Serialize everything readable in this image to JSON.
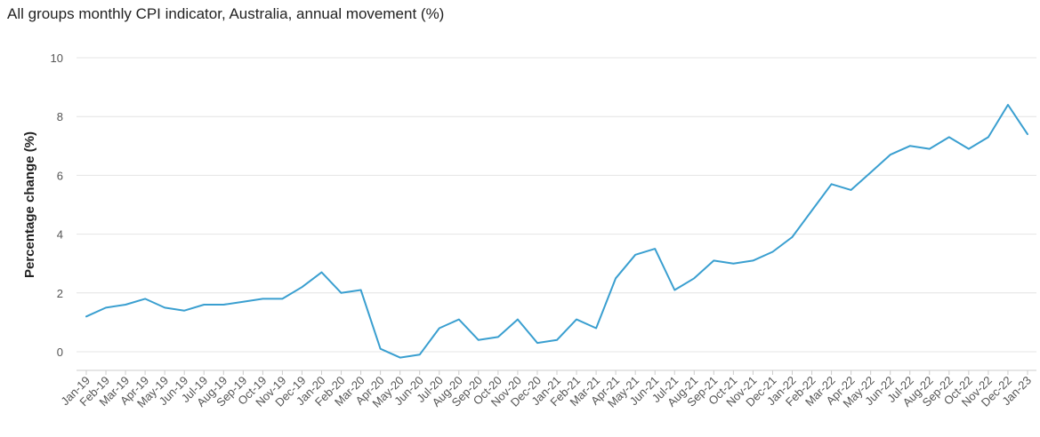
{
  "chart_data": {
    "type": "line",
    "title": "All groups monthly CPI indicator, Australia, annual movement (%)",
    "xlabel": "",
    "ylabel": "Percentage change (%)",
    "ylim": [
      0,
      10
    ],
    "yticks": [
      0,
      2,
      4,
      6,
      8,
      10
    ],
    "grid": true,
    "legend": "none",
    "categories": [
      "Jan-19",
      "Feb-19",
      "Mar-19",
      "Apr-19",
      "May-19",
      "Jun-19",
      "Jul-19",
      "Aug-19",
      "Sep-19",
      "Oct-19",
      "Nov-19",
      "Dec-19",
      "Jan-20",
      "Feb-20",
      "Mar-20",
      "Apr-20",
      "May-20",
      "Jun-20",
      "Jul-20",
      "Aug-20",
      "Sep-20",
      "Oct-20",
      "Nov-20",
      "Dec-20",
      "Jan-21",
      "Feb-21",
      "Mar-21",
      "Apr-21",
      "May-21",
      "Jun-21",
      "Jul-21",
      "Aug-21",
      "Sep-21",
      "Oct-21",
      "Nov-21",
      "Dec-21",
      "Jan-22",
      "Feb-22",
      "Mar-22",
      "Apr-22",
      "May-22",
      "Jun-22",
      "Jul-22",
      "Aug-22",
      "Sep-22",
      "Oct-22",
      "Nov-22",
      "Dec-22",
      "Jan-23"
    ],
    "series": [
      {
        "color": "#3a9fd0",
        "values": [
          1.2,
          1.5,
          1.6,
          1.8,
          1.5,
          1.4,
          1.6,
          1.6,
          1.7,
          1.8,
          1.8,
          2.2,
          2.7,
          2.0,
          2.1,
          0.1,
          -0.2,
          -0.1,
          0.8,
          1.1,
          0.4,
          0.5,
          1.1,
          0.3,
          0.4,
          1.1,
          0.8,
          2.5,
          3.3,
          3.5,
          2.1,
          2.5,
          3.1,
          3.0,
          3.1,
          3.4,
          3.9,
          4.8,
          5.7,
          5.5,
          6.1,
          6.7,
          7.0,
          6.9,
          7.3,
          6.9,
          7.3,
          8.4,
          7.4
        ]
      }
    ]
  }
}
